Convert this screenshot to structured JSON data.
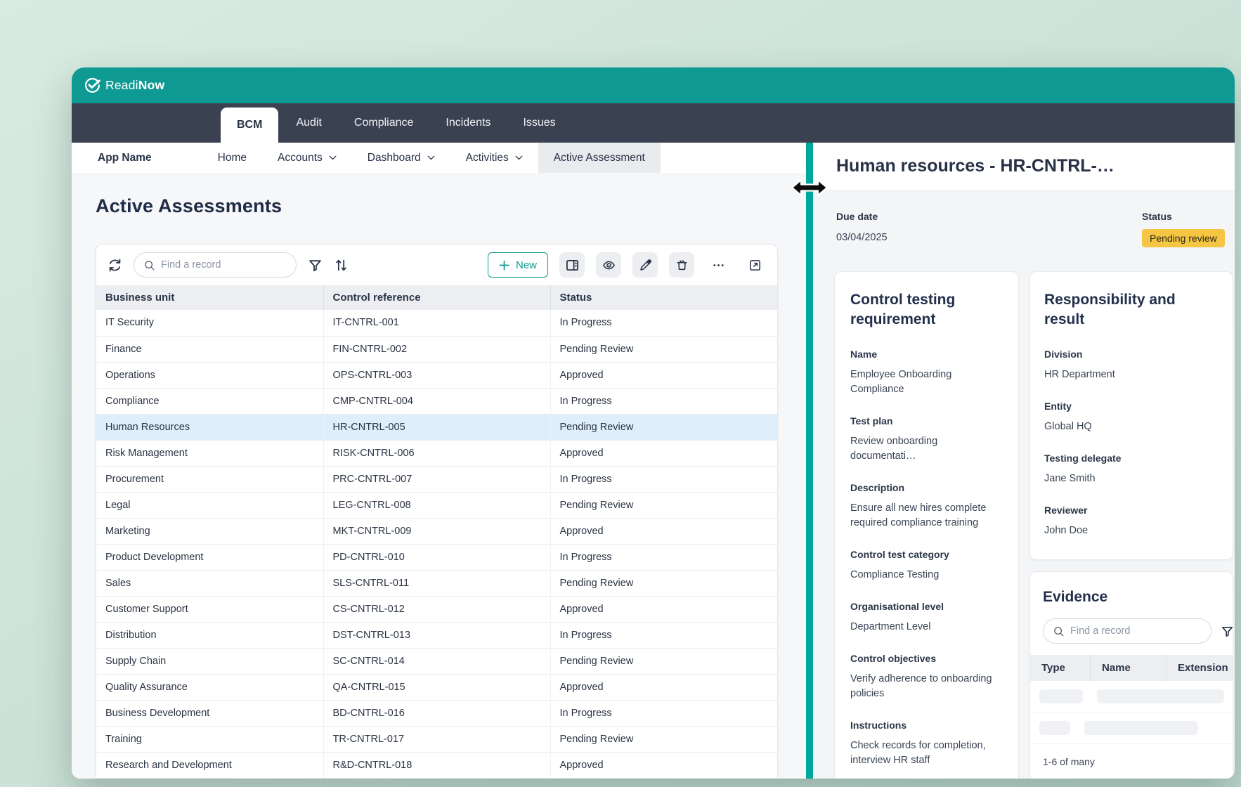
{
  "colors": {
    "accent_teal": "#0e9a92",
    "divider_teal": "#00a79b",
    "dark_nav": "#3a4252",
    "row_highlight": "#dfeefb",
    "status_badge_bg": "#f5c544"
  },
  "brand": {
    "name_regular": "Readi",
    "name_bold": "Now"
  },
  "top_nav": {
    "tabs": [
      {
        "label": "BCM",
        "active": true
      },
      {
        "label": "Audit",
        "active": false
      },
      {
        "label": "Compliance",
        "active": false
      },
      {
        "label": "Incidents",
        "active": false
      },
      {
        "label": "Issues",
        "active": false
      }
    ]
  },
  "sub_nav": {
    "app_name": "App Name",
    "items": [
      {
        "label": "Home",
        "chevron": false,
        "active": false
      },
      {
        "label": "Accounts",
        "chevron": true,
        "active": false
      },
      {
        "label": "Dashboard",
        "chevron": true,
        "active": false
      },
      {
        "label": "Activities",
        "chevron": true,
        "active": false
      },
      {
        "label": "Active Assessment",
        "chevron": false,
        "active": true
      }
    ]
  },
  "main": {
    "title": "Active Assessments",
    "toolbar": {
      "search_placeholder": "Find a record",
      "new_label": "New",
      "icons": [
        "refresh-icon",
        "filter-icon",
        "sort-icon",
        "plus-icon",
        "panel-view-icon",
        "eye-icon",
        "pencil-icon",
        "trash-icon",
        "ellipsis-icon",
        "open-in-new-icon"
      ]
    },
    "table": {
      "columns": [
        "Business unit",
        "Control reference",
        "Status"
      ],
      "rows": [
        {
          "cells": [
            "IT Security",
            "IT-CNTRL-001",
            "In Progress"
          ],
          "selected": false
        },
        {
          "cells": [
            "Finance",
            "FIN-CNTRL-002",
            "Pending Review"
          ],
          "selected": false
        },
        {
          "cells": [
            "Operations",
            "OPS-CNTRL-003",
            "Approved"
          ],
          "selected": false
        },
        {
          "cells": [
            "Compliance",
            "CMP-CNTRL-004",
            "In Progress"
          ],
          "selected": false
        },
        {
          "cells": [
            "Human Resources",
            "HR-CNTRL-005",
            "Pending Review"
          ],
          "selected": true
        },
        {
          "cells": [
            "Risk Management",
            "RISK-CNTRL-006",
            "Approved"
          ],
          "selected": false
        },
        {
          "cells": [
            "Procurement",
            "PRC-CNTRL-007",
            "In Progress"
          ],
          "selected": false
        },
        {
          "cells": [
            "Legal",
            "LEG-CNTRL-008",
            "Pending Review"
          ],
          "selected": false
        },
        {
          "cells": [
            "Marketing",
            "MKT-CNTRL-009",
            "Approved"
          ],
          "selected": false
        },
        {
          "cells": [
            "Product Development",
            "PD-CNTRL-010",
            "In Progress"
          ],
          "selected": false
        },
        {
          "cells": [
            "Sales",
            "SLS-CNTRL-011",
            "Pending Review"
          ],
          "selected": false
        },
        {
          "cells": [
            "Customer Support",
            "CS-CNTRL-012",
            "Approved"
          ],
          "selected": false
        },
        {
          "cells": [
            "Distribution",
            "DST-CNTRL-013",
            "In Progress"
          ],
          "selected": false
        },
        {
          "cells": [
            "Supply Chain",
            "SC-CNTRL-014",
            "Pending Review"
          ],
          "selected": false
        },
        {
          "cells": [
            "Quality Assurance",
            "QA-CNTRL-015",
            "Approved"
          ],
          "selected": false
        },
        {
          "cells": [
            "Business Development",
            "BD-CNTRL-016",
            "In Progress"
          ],
          "selected": false
        },
        {
          "cells": [
            "Training",
            "TR-CNTRL-017",
            "Pending Review"
          ],
          "selected": false
        },
        {
          "cells": [
            "Research and Development",
            "R&D-CNTRL-018",
            "Approved"
          ],
          "selected": false
        }
      ]
    }
  },
  "detail": {
    "title": "Human resources - HR-CNTRL-…",
    "due_date_label": "Due date",
    "due_date_value": "03/04/2025",
    "status_label": "Status",
    "status_value": "Pending review",
    "control_testing": {
      "title": "Control testing requirement",
      "fields": [
        {
          "label": "Name",
          "value": "Employee Onboarding Compliance"
        },
        {
          "label": "Test plan",
          "value": "Review onboarding documentati…"
        },
        {
          "label": "Description",
          "value": "Ensure all new hires complete required compliance training"
        },
        {
          "label": "Control test category",
          "value": "Compliance Testing"
        },
        {
          "label": "Organisational level",
          "value": "Department Level"
        },
        {
          "label": "Control objectives",
          "value": "Verify adherence to onboarding policies"
        },
        {
          "label": "Instructions",
          "value": "Check records for completion, interview HR staff"
        }
      ]
    },
    "responsibility": {
      "title": "Responsibility and result",
      "fields": [
        {
          "label": "Division",
          "value": "HR Department"
        },
        {
          "label": "Entity",
          "value": "Global HQ"
        },
        {
          "label": "Testing delegate",
          "value": "Jane Smith"
        },
        {
          "label": "Reviewer",
          "value": "John Doe"
        }
      ]
    },
    "evidence": {
      "title": "Evidence",
      "search_placeholder": "Find a record",
      "columns": [
        "Type",
        "Name",
        "Extension"
      ],
      "skeleton_rows": [
        [
          64,
          185
        ],
        [
          44,
          162
        ]
      ],
      "footer": "1-6 of many"
    }
  }
}
